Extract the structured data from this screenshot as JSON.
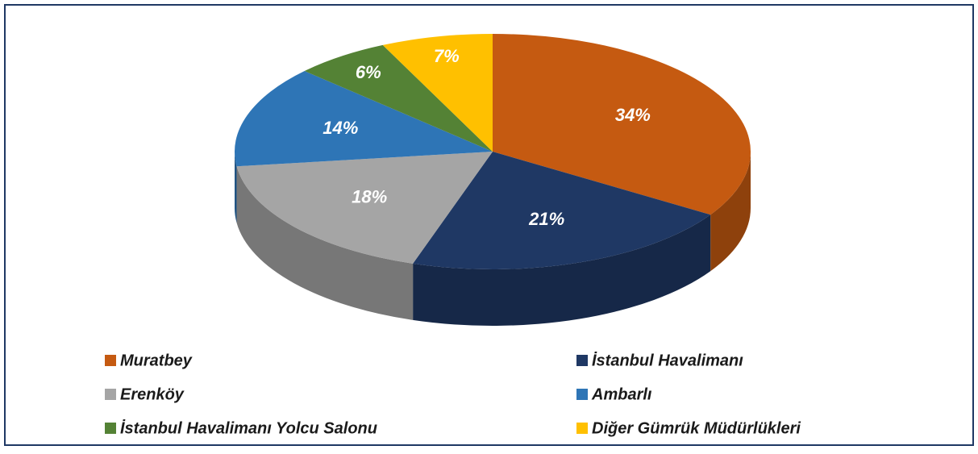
{
  "chart_data": {
    "type": "pie3d",
    "categories": [
      "Muratbey",
      "İstanbul Havalimanı",
      "Erenköy",
      "Ambarlı",
      "İstanbul Havalimanı Yolcu Salonu",
      "Diğer Gümrük Müdürlükleri"
    ],
    "values": [
      34,
      21,
      18,
      14,
      6,
      7
    ],
    "value_labels": [
      "34%",
      "21%",
      "18%",
      "14%",
      "6%",
      "7%"
    ],
    "colors": [
      "#c55a11",
      "#1f3864",
      "#a5a5a5",
      "#2e75b6",
      "#548235",
      "#ffc000"
    ],
    "legend": "bottom"
  }
}
